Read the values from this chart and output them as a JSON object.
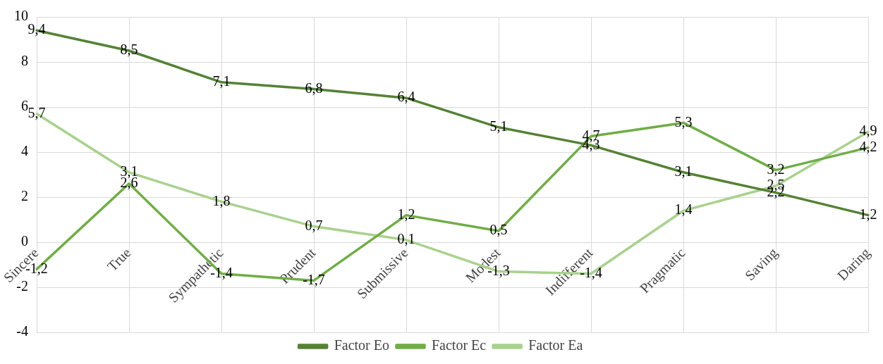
{
  "chart_data": {
    "type": "line",
    "categories": [
      "Sincere",
      "True",
      "Sympathetic",
      "Prudent",
      "Submissive",
      "Modest",
      "Indifferent",
      "Pragmatic",
      "Saving",
      "Daring"
    ],
    "series": [
      {
        "name": "Factor Eo",
        "color": "#548235",
        "values": [
          9.4,
          8.5,
          7.1,
          6.8,
          6.4,
          5.1,
          4.3,
          3.1,
          2.2,
          1.2
        ],
        "value_labels": [
          "9,4",
          "8,5",
          "7,1",
          "6,8",
          "6,4",
          "5,1",
          "4,3",
          "3,1",
          "2,2",
          "1,2"
        ]
      },
      {
        "name": "Factor Ec",
        "color": "#70ad47",
        "values": [
          -1.2,
          2.6,
          -1.4,
          -1.7,
          1.2,
          0.5,
          4.7,
          5.3,
          3.2,
          4.2
        ],
        "value_labels": [
          "-1,2",
          "2,6",
          "-1,4",
          "-1,7",
          "1,2",
          "0,5",
          "4,7",
          "5,3",
          "3,2",
          "4,2"
        ]
      },
      {
        "name": "Factor Ea",
        "color": "#a9d18e",
        "values": [
          5.7,
          3.1,
          1.8,
          0.7,
          0.1,
          -1.3,
          -1.4,
          1.4,
          2.5,
          4.9
        ],
        "value_labels": [
          "5,7",
          "3,1",
          "1,8",
          "0,7",
          "0,1",
          "-1,3",
          "-1,4",
          "1,4",
          "2,5",
          "4,9"
        ]
      }
    ],
    "ylim": [
      -4,
      10
    ],
    "yticks": [
      -4,
      -2,
      0,
      2,
      4,
      6,
      8,
      10
    ],
    "grid": true,
    "legend": "bottom",
    "marker": "none",
    "line_style": "solid"
  }
}
